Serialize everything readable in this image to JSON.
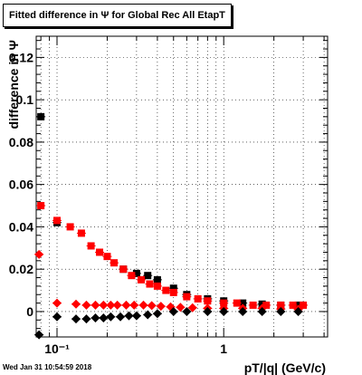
{
  "chart_data": {
    "type": "scatter",
    "title": "Fitted difference in  Ψ  for Global Rec All EtapT",
    "xlabel": "pT/|q| (GeV/c)",
    "ylabel": "difference in Ψ",
    "xscale": "log",
    "xlim": [
      0.075,
      4.2
    ],
    "ylim": [
      -0.012,
      0.13
    ],
    "grid": true,
    "y_ticks": [
      0,
      0.02,
      0.04,
      0.06,
      0.08,
      0.1,
      0.12
    ],
    "y_tick_labels": [
      "0",
      "0.02",
      "0.04",
      "0.06",
      "0.08",
      "0.1",
      "0.12"
    ],
    "x_ticks": [
      0.1,
      1
    ],
    "x_tick_labels": [
      "10⁻¹",
      "1"
    ],
    "series": [
      {
        "color": "#000000",
        "marker": "square",
        "x": [
          0.08,
          0.1,
          0.25,
          0.3,
          0.35,
          0.4,
          0.5,
          0.6,
          0.8,
          1.0,
          1.3,
          1.7,
          2.2,
          2.8
        ],
        "y": [
          0.092,
          0.042,
          0.02,
          0.018,
          0.017,
          0.015,
          0.011,
          0.008,
          0.006,
          0.005,
          0.004,
          0.0035,
          0.003,
          0.003
        ]
      },
      {
        "color": "#ff0000",
        "marker": "square",
        "x": [
          0.08,
          0.1,
          0.12,
          0.14,
          0.16,
          0.18,
          0.2,
          0.22,
          0.25,
          0.28,
          0.32,
          0.36,
          0.4,
          0.45,
          0.5,
          0.6,
          0.7,
          0.8,
          1.0,
          1.2,
          1.5,
          1.8,
          2.2,
          2.6,
          3.0
        ],
        "y": [
          0.05,
          0.043,
          0.04,
          0.037,
          0.031,
          0.028,
          0.026,
          0.023,
          0.02,
          0.017,
          0.015,
          0.013,
          0.012,
          0.01,
          0.009,
          0.007,
          0.006,
          0.005,
          0.004,
          0.004,
          0.003,
          0.003,
          0.003,
          0.003,
          0.003
        ]
      },
      {
        "color": "#ff0000",
        "marker": "diamond",
        "x": [
          0.078,
          0.1,
          0.13,
          0.15,
          0.17,
          0.19,
          0.21,
          0.23,
          0.26,
          0.29,
          0.33,
          0.37,
          0.42,
          0.48,
          0.55,
          0.65,
          0.8,
          1.0,
          1.3,
          1.7,
          2.2,
          2.8
        ],
        "y": [
          0.027,
          0.004,
          0.0035,
          0.003,
          0.003,
          0.003,
          0.003,
          0.003,
          0.003,
          0.003,
          0.003,
          0.0028,
          0.0025,
          0.0022,
          0.002,
          0.0018,
          0.0015,
          0.0015,
          0.0015,
          0.0015,
          0.0012,
          0.001
        ]
      },
      {
        "color": "#000000",
        "marker": "diamond",
        "x": [
          0.078,
          0.1,
          0.13,
          0.15,
          0.17,
          0.19,
          0.21,
          0.24,
          0.27,
          0.3,
          0.35,
          0.4,
          0.5,
          0.6,
          0.8,
          1.0,
          1.3,
          1.7,
          2.2,
          2.8
        ],
        "y": [
          -0.011,
          -0.0025,
          -0.0035,
          -0.0035,
          -0.003,
          -0.003,
          -0.0025,
          -0.0025,
          -0.002,
          -0.002,
          -0.0015,
          -0.001,
          0.0,
          0.0,
          0.0,
          0.0,
          0.0,
          0.0,
          0.0,
          0.0
        ]
      }
    ]
  },
  "footer": {
    "date": "Wed Jan 31 10:54:59 2018"
  }
}
